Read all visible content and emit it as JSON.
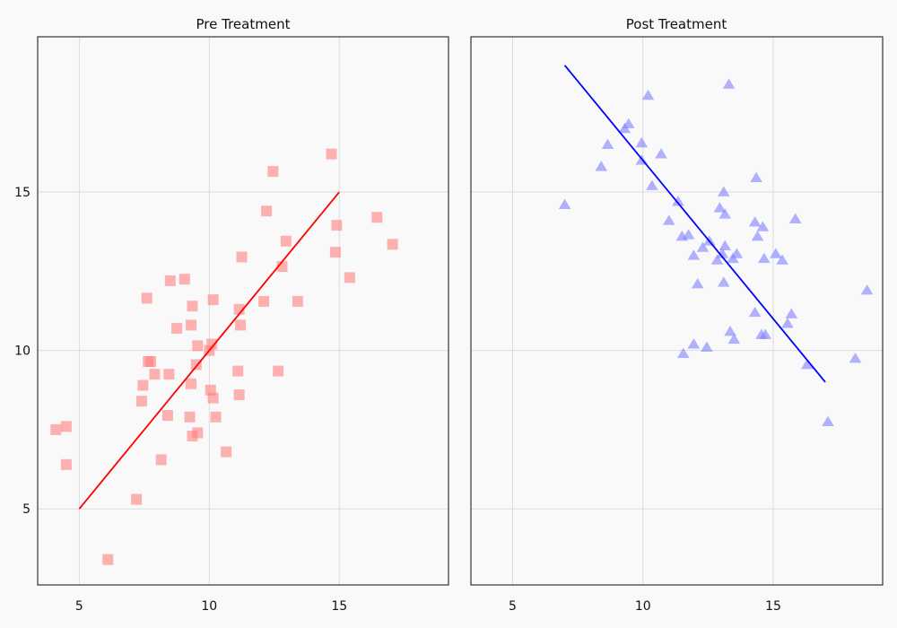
{
  "chart_data": [
    {
      "type": "scatter",
      "title": "Pre Treatment",
      "xlabel": "",
      "ylabel": "",
      "xlim": [
        3.4,
        19.2
      ],
      "ylim": [
        2.6,
        19.9
      ],
      "xticks": [
        5,
        10,
        15
      ],
      "yticks": [
        5,
        10,
        15
      ],
      "grid": true,
      "marker": "square",
      "marker_color": "#ff7f7f",
      "marker_opacity": 0.6,
      "line_color": "#ff0000",
      "points": [
        [
          4.1,
          7.5
        ],
        [
          4.5,
          7.6
        ],
        [
          4.5,
          6.4
        ],
        [
          6.1,
          3.4
        ],
        [
          7.2,
          5.3
        ],
        [
          7.4,
          8.4
        ],
        [
          7.45,
          8.9
        ],
        [
          7.6,
          11.65
        ],
        [
          7.65,
          9.65
        ],
        [
          7.75,
          9.65
        ],
        [
          7.9,
          9.25
        ],
        [
          8.15,
          6.55
        ],
        [
          8.4,
          7.95
        ],
        [
          8.45,
          9.25
        ],
        [
          8.5,
          12.2
        ],
        [
          8.75,
          10.7
        ],
        [
          9.05,
          12.25
        ],
        [
          9.25,
          7.9
        ],
        [
          9.3,
          10.8
        ],
        [
          9.3,
          8.95
        ],
        [
          9.35,
          11.4
        ],
        [
          9.35,
          7.3
        ],
        [
          9.5,
          9.55
        ],
        [
          9.55,
          7.4
        ],
        [
          9.55,
          10.15
        ],
        [
          10.0,
          10.0
        ],
        [
          10.05,
          8.75
        ],
        [
          10.1,
          10.2
        ],
        [
          10.15,
          11.6
        ],
        [
          10.15,
          8.5
        ],
        [
          10.25,
          7.9
        ],
        [
          10.65,
          6.8
        ],
        [
          11.1,
          9.35
        ],
        [
          11.15,
          8.6
        ],
        [
          11.15,
          11.3
        ],
        [
          11.2,
          10.8
        ],
        [
          11.25,
          12.95
        ],
        [
          12.1,
          11.55
        ],
        [
          12.2,
          14.4
        ],
        [
          12.45,
          15.65
        ],
        [
          12.65,
          9.35
        ],
        [
          12.8,
          12.65
        ],
        [
          12.95,
          13.45
        ],
        [
          13.4,
          11.55
        ],
        [
          14.7,
          16.2
        ],
        [
          14.85,
          13.1
        ],
        [
          14.9,
          13.95
        ],
        [
          15.4,
          12.3
        ],
        [
          16.45,
          14.2
        ],
        [
          17.05,
          13.35
        ]
      ],
      "trend": [
        [
          5,
          5
        ],
        [
          15,
          15
        ]
      ]
    },
    {
      "type": "scatter",
      "title": "Post Treatment",
      "xlabel": "",
      "ylabel": "",
      "xlim": [
        3.4,
        19.2
      ],
      "ylim": [
        2.6,
        19.9
      ],
      "xticks": [
        5,
        10,
        15
      ],
      "yticks": [
        5,
        10,
        15
      ],
      "grid": true,
      "marker": "triangle",
      "marker_color": "#7f7fff",
      "marker_opacity": 0.6,
      "line_color": "#0000ff",
      "points": [
        [
          7.0,
          14.6
        ],
        [
          8.4,
          15.8
        ],
        [
          8.65,
          16.5
        ],
        [
          9.3,
          17.0
        ],
        [
          9.45,
          17.15
        ],
        [
          9.95,
          16.55
        ],
        [
          9.95,
          16.0
        ],
        [
          10.2,
          18.05
        ],
        [
          10.35,
          15.2
        ],
        [
          10.7,
          16.2
        ],
        [
          11.0,
          14.1
        ],
        [
          11.35,
          14.7
        ],
        [
          11.5,
          13.6
        ],
        [
          11.55,
          9.9
        ],
        [
          11.75,
          13.65
        ],
        [
          11.95,
          10.2
        ],
        [
          11.95,
          13.0
        ],
        [
          12.1,
          12.1
        ],
        [
          12.3,
          13.25
        ],
        [
          12.45,
          10.1
        ],
        [
          12.55,
          13.45
        ],
        [
          12.85,
          12.85
        ],
        [
          12.95,
          14.5
        ],
        [
          13.05,
          13.05
        ],
        [
          13.1,
          12.15
        ],
        [
          13.1,
          15.0
        ],
        [
          13.15,
          13.3
        ],
        [
          13.15,
          14.3
        ],
        [
          13.3,
          18.4
        ],
        [
          13.35,
          10.6
        ],
        [
          13.45,
          12.9
        ],
        [
          13.5,
          10.35
        ],
        [
          13.6,
          13.05
        ],
        [
          14.3,
          11.2
        ],
        [
          14.3,
          14.05
        ],
        [
          14.35,
          15.45
        ],
        [
          14.4,
          13.6
        ],
        [
          14.55,
          10.5
        ],
        [
          14.6,
          13.9
        ],
        [
          14.65,
          12.9
        ],
        [
          14.7,
          10.5
        ],
        [
          15.1,
          13.05
        ],
        [
          15.35,
          12.85
        ],
        [
          15.55,
          10.85
        ],
        [
          15.7,
          11.15
        ],
        [
          15.85,
          14.15
        ],
        [
          16.3,
          9.55
        ],
        [
          17.1,
          7.75
        ],
        [
          18.15,
          9.75
        ],
        [
          18.6,
          11.9
        ]
      ],
      "trend": [
        [
          7,
          19
        ],
        [
          17,
          9
        ]
      ]
    }
  ]
}
